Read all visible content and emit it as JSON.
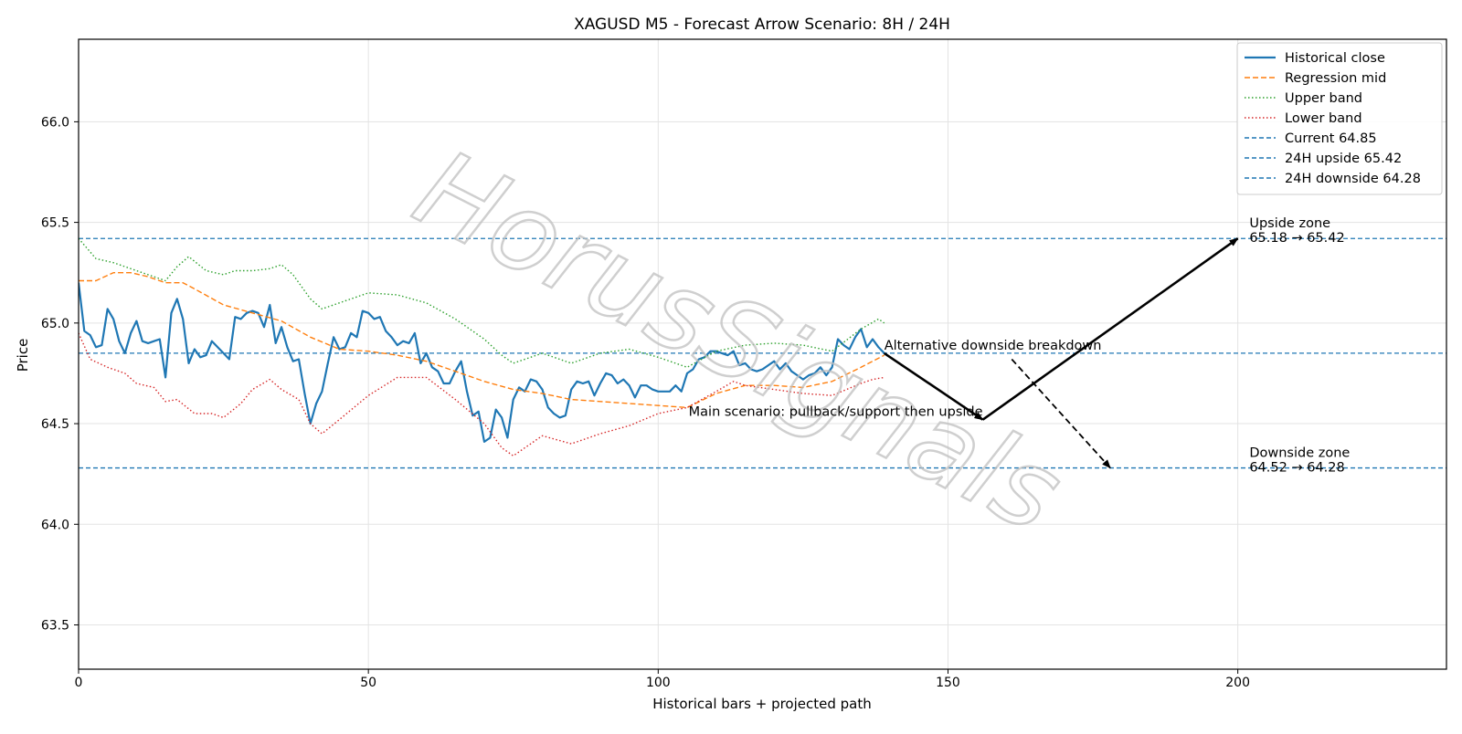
{
  "chart_data": {
    "type": "line",
    "title": "XAGUSD M5 - Forecast Arrow Scenario: 8H / 24H",
    "xlabel": "Historical bars + projected path",
    "ylabel": "Price",
    "xlim": [
      0,
      236
    ],
    "ylim": [
      63.28,
      66.41
    ],
    "xticks": [
      0,
      50,
      100,
      150,
      200
    ],
    "yticks": [
      63.5,
      64.0,
      64.5,
      65.0,
      65.5,
      66.0
    ],
    "xtick_labels": [
      "0",
      "50",
      "100",
      "150",
      "200"
    ],
    "ytick_labels": [
      "63.5",
      "64.0",
      "64.5",
      "65.0",
      "65.5",
      "66.0"
    ],
    "grid": true,
    "legend_position": "top-right",
    "watermark": "HorusSignals",
    "series": [
      {
        "name": "Historical close",
        "style": "solid",
        "color": "#1f77b4",
        "x": [
          0,
          1,
          2,
          3,
          4,
          5,
          6,
          7,
          8,
          9,
          10,
          11,
          12,
          13,
          14,
          15,
          16,
          17,
          18,
          19,
          20,
          21,
          22,
          23,
          24,
          25,
          26,
          27,
          28,
          29,
          30,
          31,
          32,
          33,
          34,
          35,
          36,
          37,
          38,
          39,
          40,
          41,
          42,
          43,
          44,
          45,
          46,
          47,
          48,
          49,
          50,
          51,
          52,
          53,
          54,
          55,
          56,
          57,
          58,
          59,
          60,
          61,
          62,
          63,
          64,
          65,
          66,
          67,
          68,
          69,
          70,
          71,
          72,
          73,
          74,
          75,
          76,
          77,
          78,
          79,
          80,
          81,
          82,
          83,
          84,
          85,
          86,
          87,
          88,
          89,
          90,
          91,
          92,
          93,
          94,
          95,
          96,
          97,
          98,
          99,
          100,
          101,
          102,
          103,
          104,
          105,
          106,
          107,
          108,
          109,
          110,
          111,
          112,
          113,
          114,
          115,
          116,
          117,
          118,
          119,
          120,
          121,
          122,
          123,
          124,
          125,
          126,
          127,
          128,
          129,
          130,
          131,
          132,
          133,
          134,
          135,
          136,
          137,
          138,
          139
        ],
        "y": [
          65.2,
          64.96,
          64.94,
          64.88,
          64.89,
          65.07,
          65.02,
          64.91,
          64.85,
          64.95,
          65.01,
          64.91,
          64.9,
          64.91,
          64.92,
          64.73,
          65.05,
          65.12,
          65.02,
          64.8,
          64.87,
          64.83,
          64.84,
          64.91,
          64.88,
          64.85,
          64.82,
          65.03,
          65.02,
          65.05,
          65.06,
          65.05,
          64.98,
          65.09,
          64.9,
          64.98,
          64.88,
          64.81,
          64.82,
          64.65,
          64.5,
          64.6,
          64.66,
          64.8,
          64.93,
          64.87,
          64.88,
          64.95,
          64.93,
          65.06,
          65.05,
          65.02,
          65.03,
          64.96,
          64.93,
          64.89,
          64.91,
          64.9,
          64.95,
          64.8,
          64.85,
          64.78,
          64.76,
          64.7,
          64.7,
          64.76,
          64.81,
          64.66,
          64.54,
          64.56,
          64.41,
          64.43,
          64.57,
          64.53,
          64.43,
          64.62,
          64.68,
          64.66,
          64.72,
          64.71,
          64.67,
          64.58,
          64.55,
          64.53,
          64.54,
          64.67,
          64.71,
          64.7,
          64.71,
          64.64,
          64.7,
          64.75,
          64.74,
          64.7,
          64.72,
          64.69,
          64.63,
          64.69,
          64.69,
          64.67,
          64.66,
          64.66,
          64.66,
          64.69,
          64.66,
          64.75,
          64.77,
          64.82,
          64.83,
          64.86,
          64.86,
          64.85,
          64.84,
          64.86,
          64.79,
          64.8,
          64.77,
          64.76,
          64.77,
          64.79,
          64.81,
          64.77,
          64.8,
          64.76,
          64.74,
          64.72,
          64.74,
          64.75,
          64.78,
          64.74,
          64.78,
          64.92,
          64.89,
          64.87,
          64.93,
          64.97,
          64.88,
          64.92,
          64.88,
          64.85
        ]
      },
      {
        "name": "Regression mid",
        "style": "dashed",
        "color": "#ff7f0e",
        "x": [
          0,
          3,
          6,
          9,
          12,
          15,
          18,
          20,
          25,
          30,
          35,
          40,
          45,
          50,
          55,
          60,
          65,
          70,
          75,
          80,
          85,
          90,
          95,
          100,
          105,
          110,
          115,
          120,
          125,
          130,
          135,
          139
        ],
        "y": [
          65.21,
          65.21,
          65.25,
          65.25,
          65.23,
          65.2,
          65.2,
          65.17,
          65.09,
          65.05,
          65.01,
          64.93,
          64.87,
          64.86,
          64.84,
          64.81,
          64.76,
          64.71,
          64.67,
          64.65,
          64.62,
          64.61,
          64.6,
          64.59,
          64.58,
          64.65,
          64.69,
          64.69,
          64.68,
          64.71,
          64.78,
          64.84
        ]
      },
      {
        "name": "Upper band",
        "style": "dotted",
        "color": "#2ca02c",
        "x": [
          0,
          3,
          6,
          9,
          12,
          15,
          17,
          19,
          22,
          25,
          27,
          30,
          33,
          35,
          37,
          40,
          42,
          45,
          50,
          55,
          60,
          65,
          70,
          73,
          75,
          80,
          85,
          90,
          95,
          100,
          105,
          110,
          115,
          120,
          125,
          130,
          135,
          138,
          139
        ],
        "y": [
          65.42,
          65.32,
          65.3,
          65.27,
          65.24,
          65.21,
          65.28,
          65.33,
          65.26,
          65.24,
          65.26,
          65.26,
          65.27,
          65.29,
          65.24,
          65.12,
          65.07,
          65.1,
          65.15,
          65.14,
          65.1,
          65.02,
          64.92,
          64.84,
          64.8,
          64.85,
          64.8,
          64.85,
          64.87,
          64.83,
          64.78,
          64.86,
          64.89,
          64.9,
          64.89,
          64.86,
          64.97,
          65.02,
          65.0
        ]
      },
      {
        "name": "Lower band",
        "style": "dotted",
        "color": "#d62728",
        "x": [
          0,
          2,
          5,
          8,
          10,
          13,
          15,
          17,
          20,
          23,
          25,
          28,
          30,
          33,
          35,
          38,
          40,
          42,
          45,
          50,
          55,
          60,
          65,
          70,
          73,
          75,
          80,
          85,
          90,
          95,
          100,
          105,
          110,
          113,
          115,
          120,
          125,
          130,
          135,
          137,
          139
        ],
        "y": [
          64.95,
          64.82,
          64.78,
          64.75,
          64.7,
          64.68,
          64.61,
          64.62,
          64.55,
          64.55,
          64.53,
          64.6,
          64.67,
          64.72,
          64.67,
          64.62,
          64.5,
          64.45,
          64.52,
          64.64,
          64.73,
          64.73,
          64.62,
          64.5,
          64.38,
          64.34,
          64.44,
          64.4,
          64.45,
          64.49,
          64.55,
          64.58,
          64.66,
          64.71,
          64.69,
          64.67,
          64.65,
          64.64,
          64.7,
          64.72,
          64.73
        ]
      },
      {
        "name": "Current 64.85",
        "style": "dashed",
        "color": "#1f77b4",
        "hline": 64.85
      },
      {
        "name": "24H upside 65.42",
        "style": "dashed",
        "color": "#1f77b4",
        "hline": 65.42
      },
      {
        "name": "24H downside 64.28",
        "style": "dashed",
        "color": "#1f77b4",
        "hline": 64.28
      }
    ],
    "arrows": [
      {
        "from": [
          139,
          64.85
        ],
        "to": [
          156,
          64.52
        ],
        "style": "solid"
      },
      {
        "from": [
          156,
          64.52
        ],
        "to": [
          200,
          65.42
        ],
        "style": "solid"
      },
      {
        "from": [
          161,
          64.82
        ],
        "to": [
          178,
          64.28
        ],
        "style": "dashed"
      }
    ],
    "annotations": [
      {
        "lines": [
          "Alternative downside breakdown"
        ],
        "x": 139,
        "y": 64.85,
        "anchor": "start"
      },
      {
        "lines": [
          "Main scenario: pullback/support then upside"
        ],
        "x": 156,
        "y": 64.52,
        "anchor": "end"
      },
      {
        "lines": [
          "Upside zone",
          "65.18 → 65.42"
        ],
        "x": 202,
        "y": 65.42,
        "anchor": "start"
      },
      {
        "lines": [
          "Downside zone",
          "64.52 → 64.28"
        ],
        "x": 202,
        "y": 64.28,
        "anchor": "start"
      }
    ]
  }
}
